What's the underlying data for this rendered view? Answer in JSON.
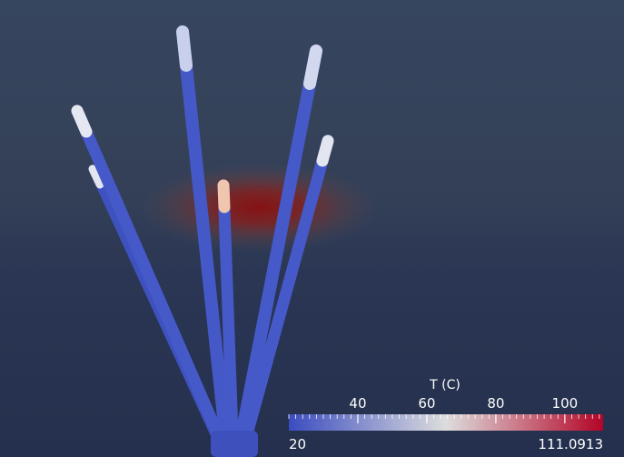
{
  "colorbar": {
    "title": "T (C)",
    "range_min_label": "20",
    "range_max_label": "111.0913",
    "range": [
      20,
      111.0913
    ],
    "tick_labels": [
      "40",
      "60",
      "80",
      "100"
    ],
    "tick_values": [
      40,
      60,
      80,
      100
    ],
    "colormap": [
      "#3b4cc0",
      "#dddddd",
      "#b40426"
    ]
  },
  "scene": {
    "background_colors": [
      "#36465e",
      "#2d3a58",
      "#22304e"
    ],
    "heat_glow_color": "#8e1414",
    "electrode_color": "#4659c9",
    "electrode_hot_tip_color": "#f0c8b0",
    "electrode_warm_tip_color": "#dfe4ef"
  }
}
